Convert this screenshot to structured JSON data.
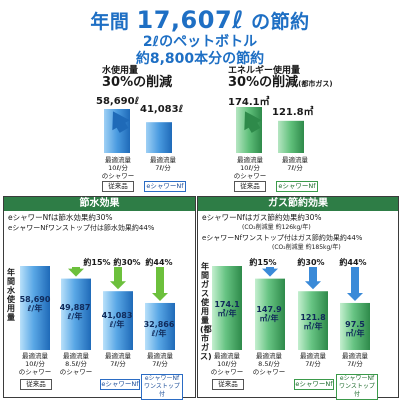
{
  "headline": {
    "line1_prefix": "年間",
    "line1_number": "17,607ℓ",
    "line1_suffix": "の節約",
    "line2": "2ℓのペットボトル",
    "line3": "約8,800本分の節約"
  },
  "top_water": {
    "caption1": "水使用量",
    "caption2": "30%の削減",
    "values": [
      "58,690ℓ",
      "41,083ℓ"
    ]
  },
  "top_energy": {
    "caption1": "エネルギー使用量",
    "caption2_main": "30%の削減",
    "caption2_note": "(都市ガス)",
    "values": [
      "174.1㎥",
      "121.8㎥"
    ]
  },
  "top_xlabels": {
    "conventional": "最適流量\n10ℓ/分\nのシャワー",
    "eshower": "最適流量\n7ℓ/分"
  },
  "tags": {
    "conventional": "従来品",
    "eshower": "eシャワーNf",
    "eshower_onestop": "eシャワーNf\nワンストップ付"
  },
  "water_panel": {
    "title": "節水効果",
    "note1": "eシャワーNfは節水効果約30%",
    "note2": "eシャワーNfワンストップ付は節水効果約44%",
    "vlabel": "年間水使用量",
    "pcts": [
      "約15%",
      "約30%",
      "約44%"
    ],
    "bar_labels": [
      "58,690\nℓ/年",
      "49,887\nℓ/年",
      "41,083\nℓ/年",
      "32,866\nℓ/年"
    ],
    "xlabels": [
      "最適流量\n10ℓ/分\nのシャワー",
      "最適流量\n8.5ℓ/分\nのシャワー",
      "最適流量\n7ℓ/分",
      "最適流量\n7ℓ/分"
    ]
  },
  "gas_panel": {
    "title": "ガス節約効果",
    "note1": "eシャワーNfはガス節約効果約30%",
    "note1_sub": "(CO₂削減量 約126kg/年)",
    "note2": "eシャワーNfワンストップ付はガス節約効果約44%",
    "note2_sub": "(CO₂削減量 約185kg/年)",
    "vlabel": "年間ガス使用量(都市ガス)",
    "pcts": [
      "約15%",
      "約30%",
      "約44%"
    ],
    "bar_labels": [
      "174.1\n㎥/年",
      "147.9\n㎥/年",
      "121.8\n㎥/年",
      "97.5\n㎥/年"
    ],
    "xlabels": [
      "最適流量\n10ℓ/分\nのシャワー",
      "最適流量\n8.5ℓ/分\nのシャワー",
      "最適流量\n7ℓ/分",
      "最適流量\n7ℓ/分"
    ]
  },
  "colors": {
    "blue_bar": "#4a9be0",
    "green_bar": "#5fbf7a",
    "blue_arrow": "#3a8ad8",
    "green_arrow": "#6cc03c",
    "panel_title_bg": "#2e7d46",
    "headline": "#1e6fc4"
  },
  "chart_data": [
    {
      "type": "bar",
      "categories": [
        "従来品",
        "eシャワーNf"
      ],
      "values": [
        58690,
        41083
      ],
      "ylabel": "水使用量"
    },
    {
      "type": "bar",
      "categories": [
        "従来品",
        "eシャワーNf"
      ],
      "values": [
        174.1,
        121.8
      ],
      "ylabel": "エネルギー使用量"
    },
    {
      "type": "bar",
      "title": "節水効果",
      "categories": [
        "最適流量10ℓ/分のシャワー",
        "最適流量8.5ℓ/分のシャワー",
        "最適流量7ℓ/分",
        "最適流量7ℓ/分"
      ],
      "values": [
        58690,
        49887,
        41083,
        32866
      ],
      "ylabel": "年間水使用量"
    },
    {
      "type": "bar",
      "title": "ガス節約効果",
      "categories": [
        "最適流量10ℓ/分のシャワー",
        "最適流量8.5ℓ/分のシャワー",
        "最適流量7ℓ/分",
        "最適流量7ℓ/分"
      ],
      "values": [
        174.1,
        147.9,
        121.8,
        97.5
      ],
      "ylabel": "年間ガス使用量(都市ガス)"
    }
  ]
}
